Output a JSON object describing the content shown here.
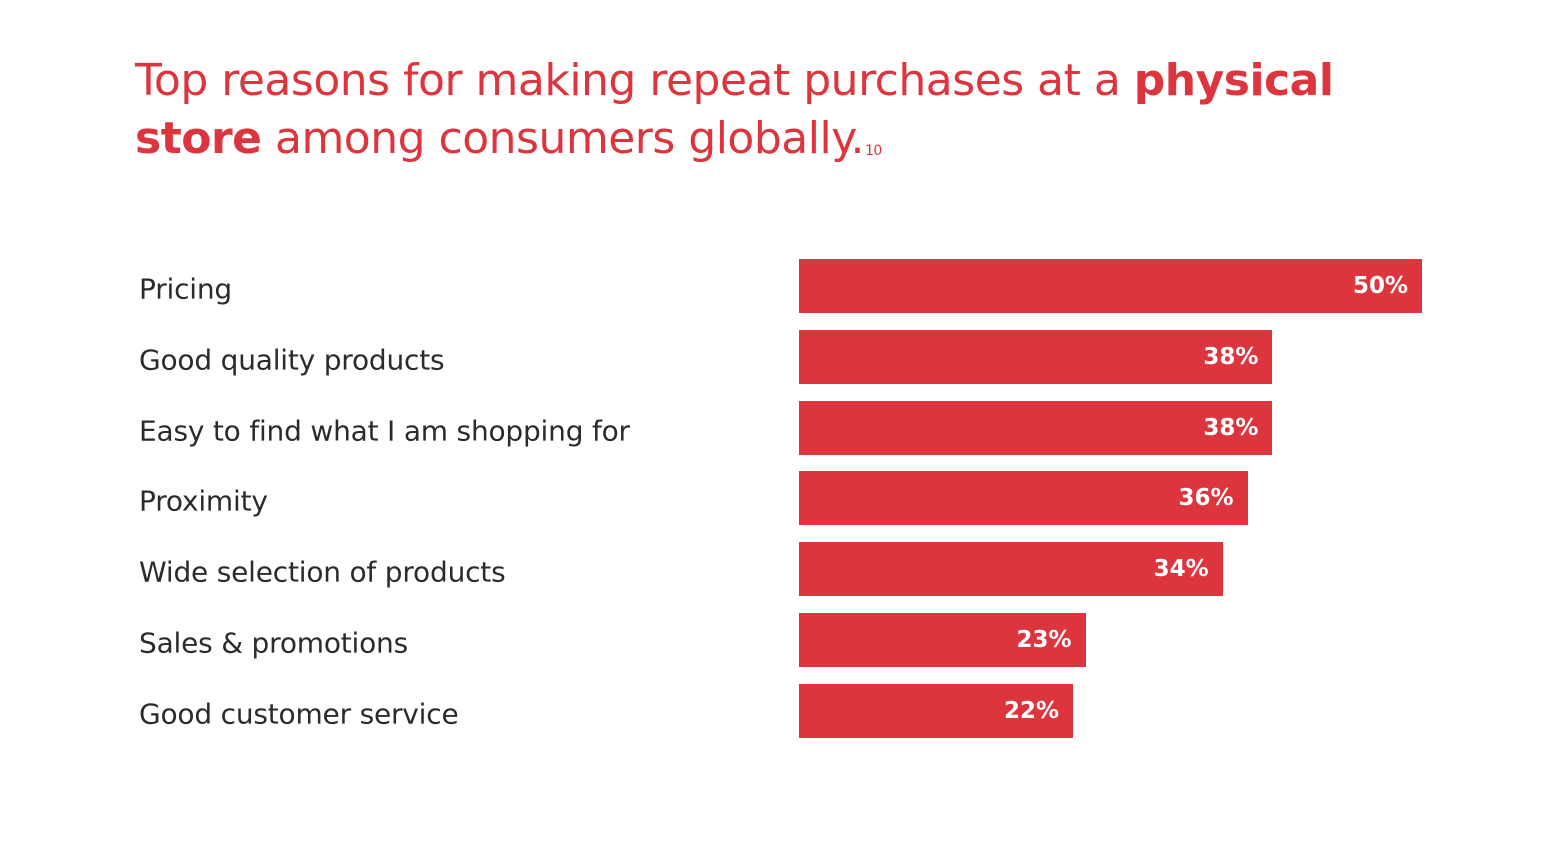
{
  "title": {
    "part1": "Top reasons for making repeat purchases at a ",
    "bold1": "physical store",
    "part2": " among consumers globally.",
    "footnote": "10"
  },
  "colors": {
    "bar": "#dc353e",
    "category_text": "#2b2b2b"
  },
  "chart_data": {
    "type": "bar",
    "orientation": "horizontal",
    "categories": [
      "Pricing",
      "Good quality products",
      "Easy to find what I am shopping for",
      "Proximity",
      "Wide selection of products",
      "Sales & promotions",
      "Good customer service"
    ],
    "values": [
      50,
      38,
      38,
      36,
      34,
      23,
      22
    ],
    "value_labels": [
      "50%",
      "38%",
      "38%",
      "36%",
      "34%",
      "23%",
      "22%"
    ],
    "unit": "%",
    "xlim": [
      0,
      50
    ],
    "grid": false,
    "legend": "none"
  }
}
